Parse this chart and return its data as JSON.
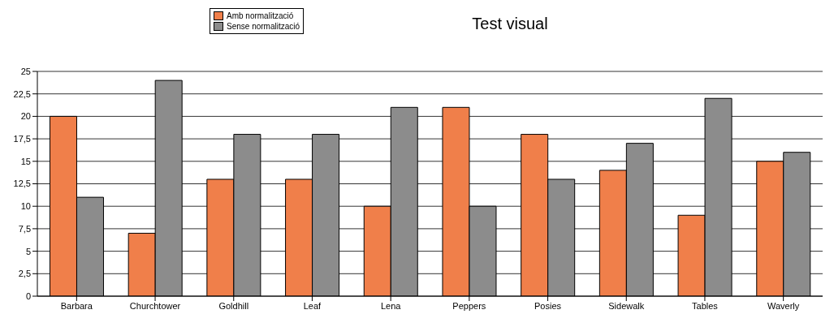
{
  "chart_data": {
    "type": "bar",
    "title": "Test visual",
    "categories": [
      "Barbara",
      "Churchtower",
      "Goldhill",
      "Leaf",
      "Lena",
      "Peppers",
      "Posies",
      "Sidewalk",
      "Tables",
      "Waverly"
    ],
    "series": [
      {
        "name": "Amb normalització",
        "color": "#f07f4a",
        "values": [
          20,
          7,
          13,
          13,
          10,
          21,
          18,
          14,
          9,
          15
        ]
      },
      {
        "name": "Sense normalització",
        "color": "#8c8c8c",
        "values": [
          11,
          24,
          18,
          18,
          21,
          10,
          13,
          17,
          22,
          16
        ]
      }
    ],
    "ylim": [
      0,
      25
    ],
    "yticks": [
      0,
      {
        "value": 2.5,
        "label": "2,5"
      },
      5,
      {
        "value": 7.5,
        "label": "7,5"
      },
      10,
      {
        "value": 12.5,
        "label": "12,5"
      },
      15,
      {
        "value": 17.5,
        "label": "17,5"
      },
      20,
      {
        "value": 22.5,
        "label": "22,5"
      },
      25
    ],
    "grid": "y",
    "legend": "top left"
  }
}
